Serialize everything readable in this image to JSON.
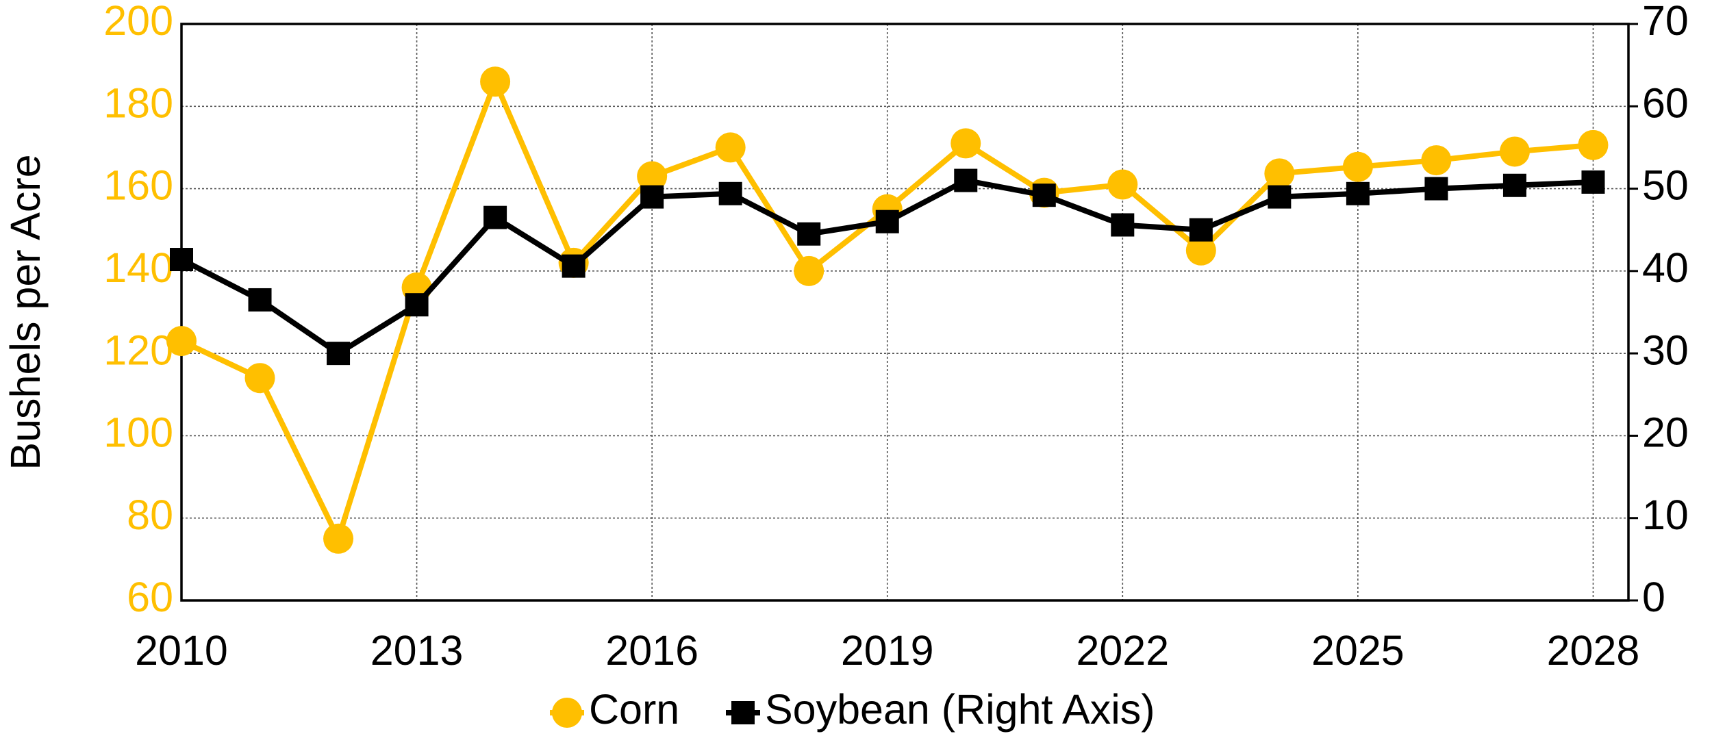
{
  "chart_data": {
    "type": "line",
    "y_axis_label": "Bushels per Acre",
    "x": [
      2010,
      2011,
      2012,
      2013,
      2014,
      2015,
      2016,
      2017,
      2018,
      2019,
      2020,
      2021,
      2022,
      2023,
      2024,
      2025,
      2026,
      2027,
      2028
    ],
    "xlim": [
      2010,
      2028.45
    ],
    "xticks": [
      2010,
      2013,
      2016,
      2019,
      2022,
      2025,
      2028
    ],
    "ylim": [
      60,
      200
    ],
    "yticks": [
      60,
      80,
      100,
      120,
      140,
      160,
      180,
      200
    ],
    "y2lim": [
      0,
      70
    ],
    "y2ticks": [
      0,
      10,
      20,
      30,
      40,
      50,
      60,
      70
    ],
    "grid": true,
    "legend": "bottom",
    "series": [
      {
        "name": "Corn",
        "color": "#ffbf00",
        "marker": "circle",
        "values": [
          123,
          114,
          75,
          136,
          186,
          142,
          163,
          170,
          140,
          155,
          171,
          159,
          161,
          145,
          163.7,
          165.3,
          166.9,
          169,
          170.6
        ]
      },
      {
        "name": "Soybean (Right Axis)",
        "color": "#000000",
        "marker": "square",
        "axis": "y2",
        "values": [
          41.4,
          36.5,
          30.0,
          35.9,
          46.5,
          40.6,
          49.0,
          49.4,
          44.5,
          46.0,
          51.0,
          49.2,
          45.6,
          45.0,
          49.0,
          49.4,
          50.0,
          50.4,
          50.8
        ]
      }
    ]
  }
}
